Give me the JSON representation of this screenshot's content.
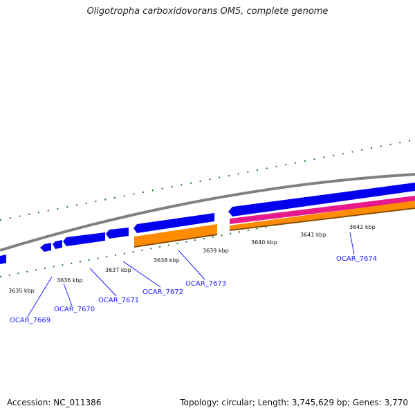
{
  "title": "Oligotropha carboxidovorans OM5, complete genome",
  "footer": {
    "accession": "Accession: NC_011386",
    "summary": "Topology: circular; Length: 3,745,629 bp; Genes: 3,770"
  },
  "ticks": [
    "3635 kbp",
    "3636 kbp",
    "3637 kbp",
    "3638 kbp",
    "3639 kbp",
    "3640 kbp",
    "3641 kbp",
    "3642 kbp"
  ],
  "genes": [
    "OCAR_7669",
    "OCAR_7670",
    "OCAR_7671",
    "OCAR_7672",
    "OCAR_7673",
    "OCAR_7674"
  ],
  "colors": {
    "backbone": "#808080",
    "cds": "#0000ee",
    "gene": "#ff8c00",
    "rna": "#e8198c",
    "gc": "#1a7a1a",
    "label": "#1a1aff"
  }
}
